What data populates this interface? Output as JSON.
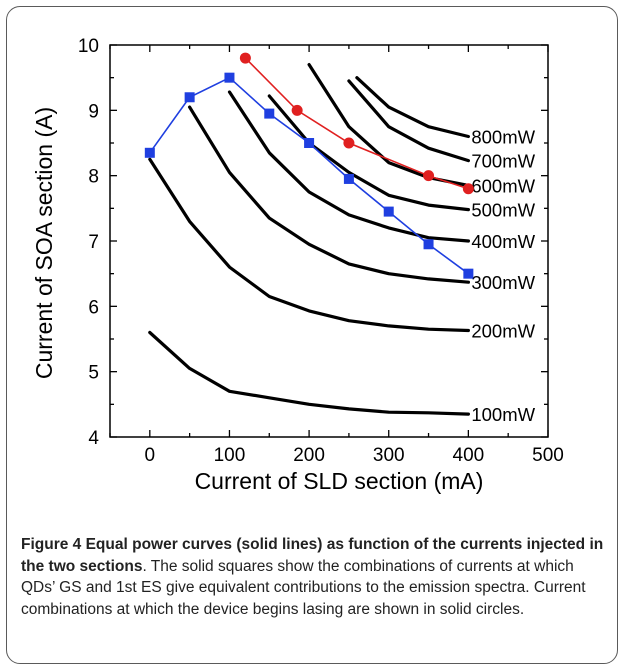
{
  "chart_data": {
    "type": "line",
    "xlabel": "Current of SLD section (mA)",
    "ylabel": "Current of SOA section (A)",
    "xlim": [
      -50,
      500
    ],
    "ylim": [
      4,
      10
    ],
    "xticks": [
      "0",
      "100",
      "200",
      "300",
      "400",
      "500"
    ],
    "yticks": [
      "4",
      "5",
      "6",
      "7",
      "8",
      "9",
      "10"
    ],
    "grid": false,
    "power_curves": [
      {
        "label": "100mW",
        "x": [
          0,
          50,
          100,
          150,
          200,
          250,
          300,
          350,
          400
        ],
        "y": [
          5.6,
          5.05,
          4.7,
          4.6,
          4.5,
          4.43,
          4.38,
          4.37,
          4.35
        ]
      },
      {
        "label": "200mW",
        "x": [
          0,
          50,
          100,
          150,
          200,
          250,
          300,
          350,
          400
        ],
        "y": [
          8.25,
          7.3,
          6.6,
          6.15,
          5.93,
          5.78,
          5.7,
          5.65,
          5.63
        ]
      },
      {
        "label": "300mW",
        "x": [
          50,
          100,
          150,
          200,
          250,
          300,
          350,
          400
        ],
        "y": [
          9.05,
          8.05,
          7.35,
          6.95,
          6.65,
          6.5,
          6.42,
          6.37
        ]
      },
      {
        "label": "400mW",
        "x": [
          100,
          150,
          200,
          250,
          300,
          350,
          400
        ],
        "y": [
          9.28,
          8.35,
          7.75,
          7.4,
          7.2,
          7.05,
          7.0
        ]
      },
      {
        "label": "500mW",
        "x": [
          150,
          200,
          250,
          300,
          350,
          400
        ],
        "y": [
          9.22,
          8.5,
          8.05,
          7.7,
          7.55,
          7.48
        ]
      },
      {
        "label": "600mW",
        "x": [
          200,
          250,
          300,
          350,
          400
        ],
        "y": [
          9.7,
          8.75,
          8.2,
          7.97,
          7.85
        ]
      },
      {
        "label": "700mW",
        "x": [
          250,
          300,
          350,
          400
        ],
        "y": [
          9.45,
          8.75,
          8.42,
          8.23
        ]
      },
      {
        "label": "800mW",
        "x": [
          260,
          300,
          350,
          400
        ],
        "y": [
          9.5,
          9.05,
          8.75,
          8.6
        ]
      }
    ],
    "series": [
      {
        "marker": "square",
        "color": "#1f3fe0",
        "x": [
          0,
          50,
          100,
          150,
          200,
          250,
          300,
          350,
          400
        ],
        "y": [
          8.35,
          9.2,
          9.5,
          8.95,
          8.5,
          7.95,
          7.45,
          6.95,
          6.5
        ]
      },
      {
        "marker": "circle",
        "color": "#e02020",
        "x": [
          120,
          185,
          250,
          350,
          400
        ],
        "y": [
          9.8,
          9.0,
          8.5,
          8.0,
          7.8
        ]
      }
    ]
  },
  "caption": {
    "title": "Figure 4 Equal power curves (solid lines) as function of the currents injected in the two sections",
    "body": ". The solid squares show the combinations of currents at which QDs’ GS and 1st ES give equivalent contributions to the emission spectra. Current combinations at which the device begins lasing are shown in solid circles."
  }
}
